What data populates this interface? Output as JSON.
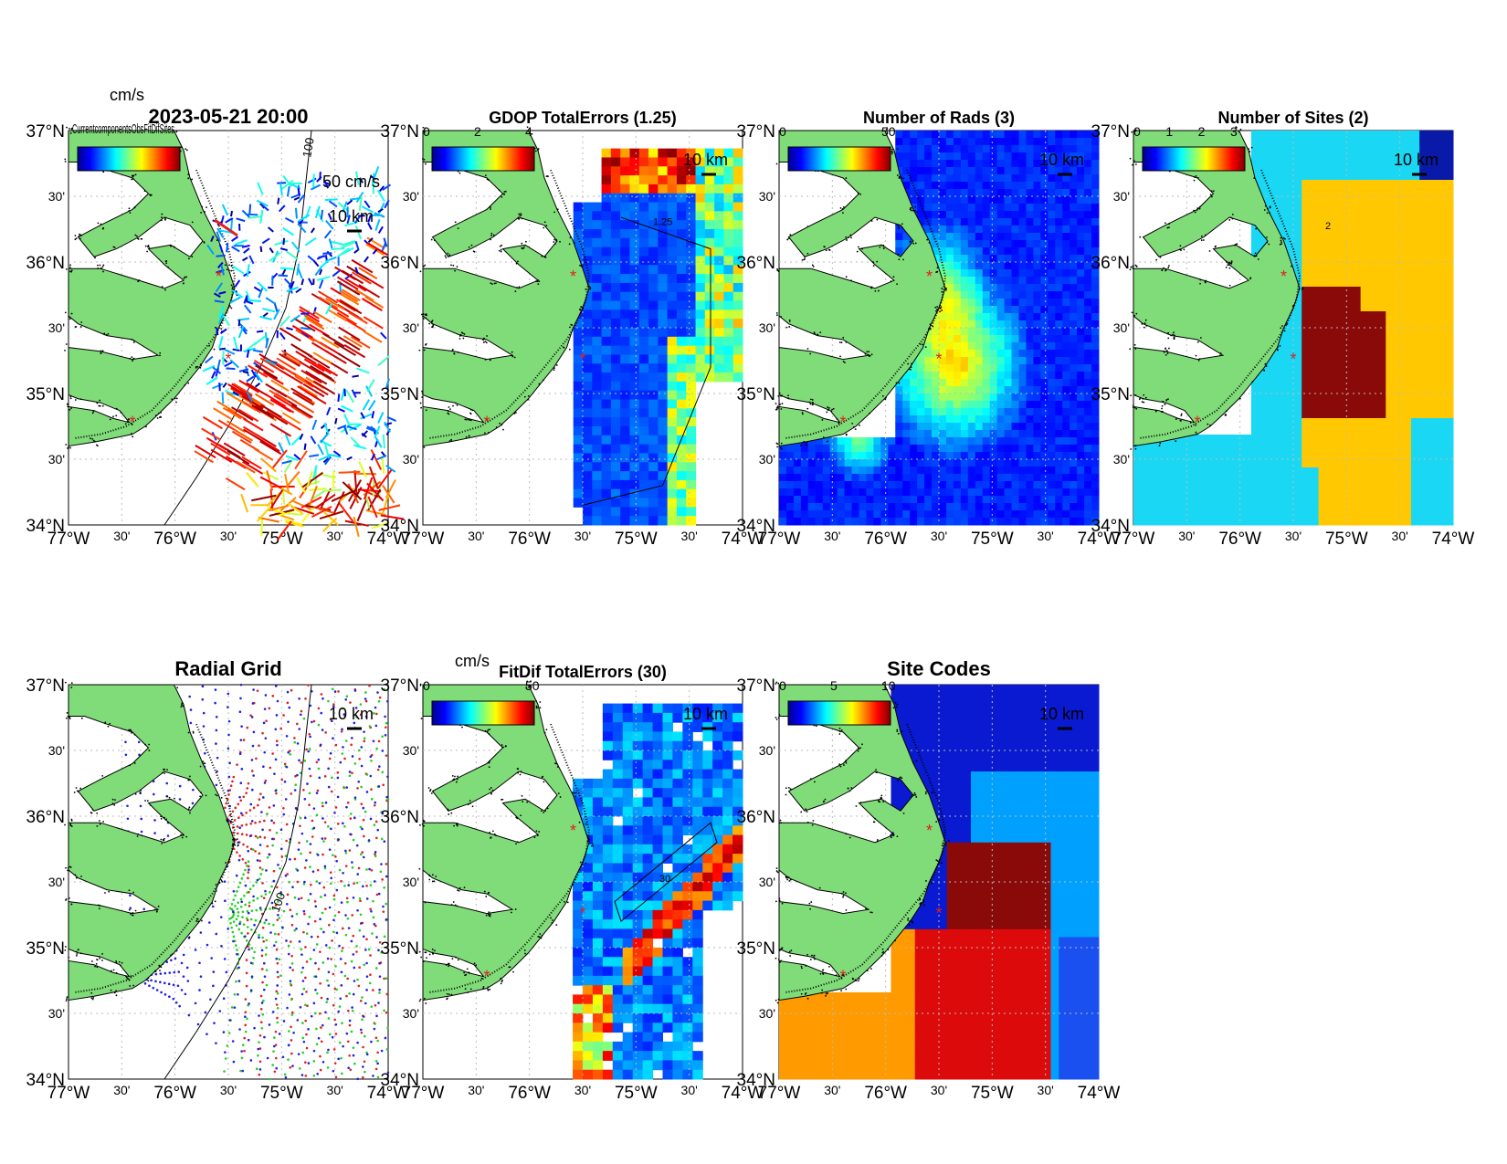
{
  "figure": {
    "timestamp": "2023-05-21 20:00",
    "lat_ticks": [
      "37°N",
      "30'",
      "36°N",
      "30'",
      "35°N",
      "30'",
      "34°N"
    ],
    "lon_ticks": [
      "77°W",
      "30'",
      "76°W",
      "30'",
      "75°W",
      "30'",
      "74°W"
    ],
    "scale_label": "10 km",
    "cb_unit": "cm/s",
    "overlap_text": "CurrentcomponentsObsFitDifSites",
    "land_color": "#80dc78",
    "site_marker_color": "#e0201c"
  },
  "panels": [
    {
      "id": "currents",
      "title": "2023-05-21 20:00",
      "cb_ticks": [],
      "vector_label": "50 cm/s",
      "contour": "100"
    },
    {
      "id": "gdop",
      "title": "GDOP TotalErrors (1.25)",
      "cb_ticks": [
        "0",
        "2",
        "4"
      ],
      "contour": "1.25"
    },
    {
      "id": "nrads",
      "title": "Number of Rads (3)",
      "cb_ticks": [
        "0",
        "50"
      ]
    },
    {
      "id": "nsites",
      "title": "Number of Sites (2)",
      "cb_ticks": [
        "0",
        "1",
        "2",
        "3"
      ],
      "contour": "2"
    },
    {
      "id": "radial_grid",
      "title": "Radial Grid",
      "cb_ticks": [],
      "contour": "100"
    },
    {
      "id": "fitdif",
      "title": "FitDif TotalErrors (30)",
      "cb_ticks": [
        "0",
        "50"
      ],
      "contour": "30"
    },
    {
      "id": "sitecodes",
      "title": "Site Codes",
      "cb_ticks": [
        "0",
        "5",
        "10"
      ]
    }
  ]
}
